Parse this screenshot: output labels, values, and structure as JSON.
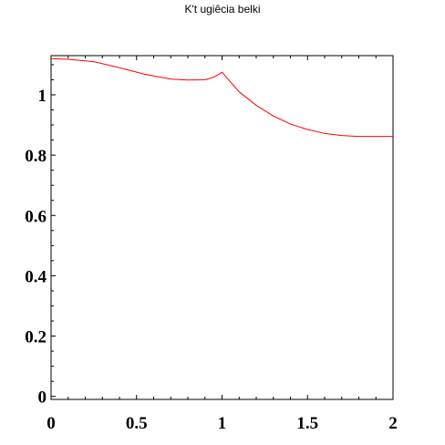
{
  "chart_data": {
    "type": "line",
    "title": "K't ugiêcia belki",
    "xlabel": "",
    "ylabel": "",
    "xlim": [
      0,
      2
    ],
    "ylim": [
      -0.01,
      1.13
    ],
    "x_ticks": [
      0,
      0.5,
      1,
      1.5,
      2
    ],
    "x_tick_labels": [
      "0",
      "0.5",
      "1",
      "1.5",
      "2"
    ],
    "y_ticks": [
      0,
      0.2,
      0.4,
      0.6,
      0.8,
      1
    ],
    "y_tick_labels": [
      "0",
      "0.2",
      "0.4",
      "0.6",
      "0.8",
      "1"
    ],
    "grid": false,
    "series": [
      {
        "color": "#ff0000",
        "x": [
          0,
          0.1,
          0.25,
          0.4,
          0.55,
          0.7,
          0.8,
          0.9,
          0.95,
          1.0,
          1.1,
          1.2,
          1.3,
          1.4,
          1.5,
          1.6,
          1.7,
          1.8,
          1.9,
          2.0
        ],
        "y": [
          1.12,
          1.118,
          1.11,
          1.09,
          1.068,
          1.052,
          1.049,
          1.05,
          1.058,
          1.075,
          1.01,
          0.965,
          0.93,
          0.903,
          0.885,
          0.872,
          0.865,
          0.862,
          0.862,
          0.862
        ]
      }
    ]
  }
}
